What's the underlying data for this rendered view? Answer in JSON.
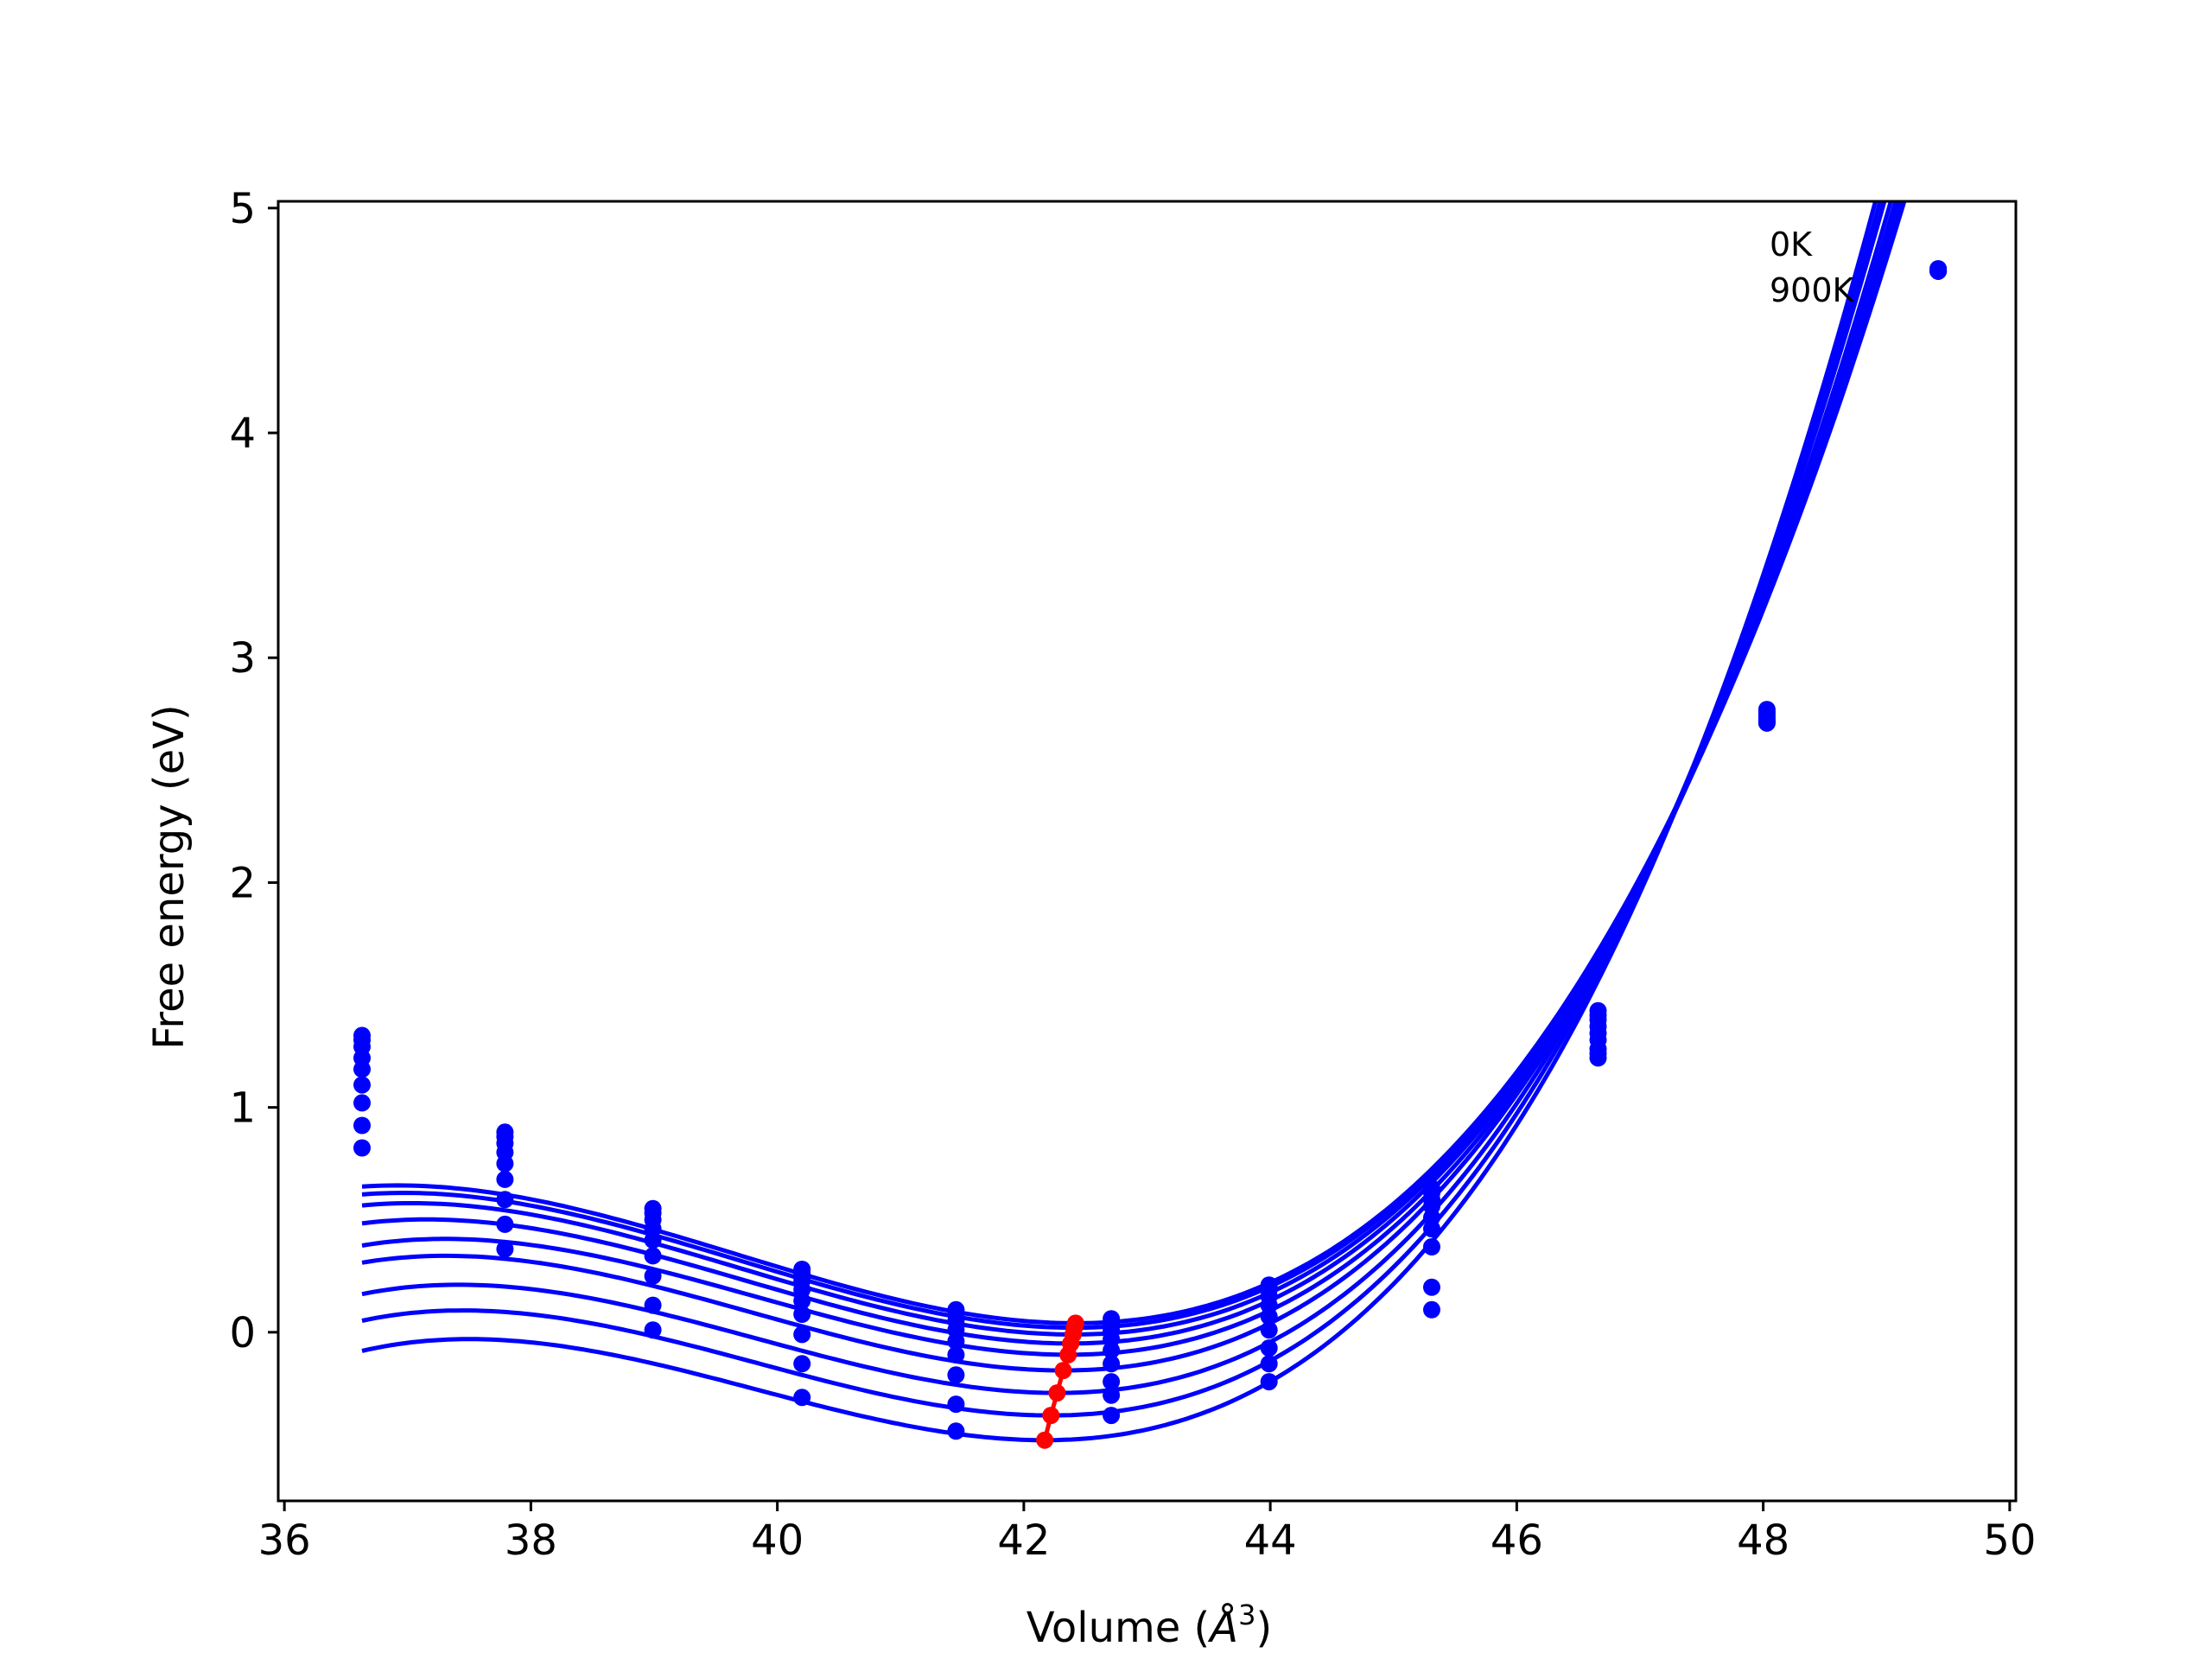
{
  "chart_data": {
    "type": "line",
    "title": "",
    "xlabel": "Volume (",
    "xlabel_symbol": "Å",
    "xlabel_exponent": "3",
    "xlabel_close": ")",
    "ylabel": "Free energy (eV)",
    "xlim": [
      35.95,
      50.05
    ],
    "ylim": [
      -0.75,
      5.03
    ],
    "xticks": [
      36,
      38,
      40,
      42,
      44,
      46,
      48,
      50
    ],
    "yticks": [
      0,
      1,
      2,
      3,
      4,
      5
    ],
    "grid": false,
    "legend": "none",
    "annotations": [
      "0K",
      "900K"
    ],
    "series_color": "#0000ff",
    "minima_color": "#ff0000",
    "x": [
      36.63,
      37.79,
      38.99,
      40.2,
      41.45,
      42.71,
      43.99,
      45.31,
      46.66,
      48.03,
      49.42
    ],
    "series": [
      {
        "values": [
          1.32,
          0.89,
          0.55,
          0.28,
          0.1,
          0.06,
          0.21,
          0.64,
          1.43,
          2.77,
          4.73
        ]
      },
      {
        "values": [
          1.3,
          0.87,
          0.53,
          0.26,
          0.08,
          0.04,
          0.19,
          0.62,
          1.41,
          2.76,
          4.73
        ]
      },
      {
        "values": [
          1.27,
          0.84,
          0.5,
          0.23,
          0.05,
          0.01,
          0.16,
          0.59,
          1.39,
          2.75,
          4.72
        ]
      },
      {
        "values": [
          1.22,
          0.8,
          0.46,
          0.19,
          0.01,
          -0.03,
          0.12,
          0.56,
          1.36,
          2.74,
          4.72
        ]
      },
      {
        "values": [
          1.17,
          0.75,
          0.41,
          0.14,
          -0.04,
          -0.08,
          0.07,
          0.51,
          1.33,
          2.73,
          4.72
        ]
      },
      {
        "values": [
          1.1,
          0.68,
          0.34,
          0.08,
          -0.1,
          -0.14,
          0.01,
          0.46,
          1.3,
          2.72,
          4.72
        ]
      },
      {
        "values": [
          1.02,
          0.59,
          0.25,
          -0.01,
          -0.19,
          -0.22,
          -0.07,
          0.38,
          1.26,
          2.71,
          4.72
        ]
      },
      {
        "values": [
          0.92,
          0.48,
          0.12,
          -0.14,
          -0.32,
          -0.28,
          -0.14,
          0.2,
          1.24,
          2.71,
          4.72
        ]
      },
      {
        "values": [
          0.82,
          0.37,
          0.01,
          -0.29,
          -0.44,
          -0.37,
          -0.22,
          0.1,
          1.22,
          2.72,
          4.72
        ]
      }
    ],
    "minima": {
      "x": [
        42.42,
        42.41,
        42.4,
        42.38,
        42.36,
        42.32,
        42.27,
        42.22,
        42.17
      ],
      "y": [
        0.04,
        0.02,
        -0.01,
        -0.05,
        -0.1,
        -0.17,
        -0.27,
        -0.37,
        -0.48
      ]
    },
    "curves": [
      {
        "V0": 42.42,
        "E0": 0.04,
        "a": 0.0608,
        "b": 0.00737
      },
      {
        "V0": 42.41,
        "E0": 0.02,
        "a": 0.0608,
        "b": 0.00745
      },
      {
        "V0": 42.4,
        "E0": -0.01,
        "a": 0.0608,
        "b": 0.00755
      },
      {
        "V0": 42.38,
        "E0": -0.05,
        "a": 0.0606,
        "b": 0.00773
      },
      {
        "V0": 42.36,
        "E0": -0.1,
        "a": 0.0604,
        "b": 0.00796
      },
      {
        "V0": 42.32,
        "E0": -0.17,
        "a": 0.0609,
        "b": 0.0081
      },
      {
        "V0": 42.27,
        "E0": -0.27,
        "a": 0.0612,
        "b": 0.0084
      },
      {
        "V0": 42.22,
        "E0": -0.37,
        "a": 0.0615,
        "b": 0.00859
      },
      {
        "V0": 42.17,
        "E0": -0.48,
        "a": 0.0618,
        "b": 0.00882
      }
    ]
  }
}
